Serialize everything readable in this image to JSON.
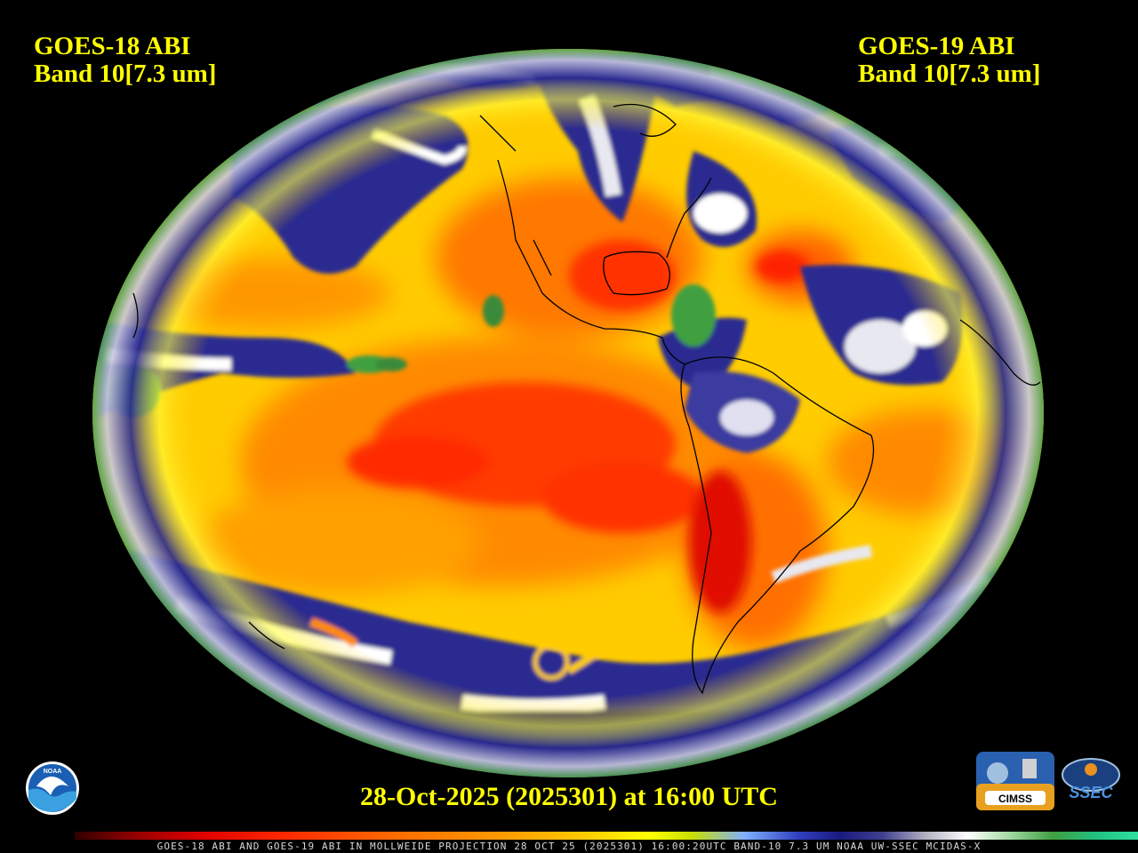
{
  "left_title": {
    "satellite": "GOES-18 ABI",
    "band": "Band 10[7.3 um]"
  },
  "right_title": {
    "satellite": "GOES-19 ABI",
    "band": "Band 10[7.3 um]"
  },
  "timestamp": "28-Oct-2025 (2025301) at 16:00 UTC",
  "footer": "GOES-18 ABI AND GOES-19 ABI IN MOLLWEIDE PROJECTION 28 OCT 25 (2025301) 16:00:20UTC BAND-10 7.3 UM NOAA UW-SSEC MCIDAS-X",
  "logos": {
    "noaa": "NOAA",
    "cimss": "CIMSS",
    "ssec": "SSEC"
  },
  "map": {
    "projection": "Mollweide",
    "colors": {
      "very_dry": "#e00000",
      "dry": "#ff6a00",
      "moderate": "#ffcc00",
      "moist_edge": "#ffff00",
      "moist": "#1a1a80",
      "cloud": "#ffffff",
      "cold_cloud": "#40a040",
      "background": "#000000"
    }
  }
}
